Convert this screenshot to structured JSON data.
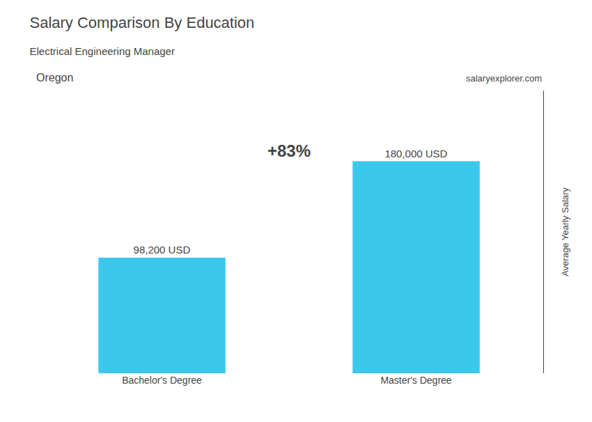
{
  "chart_data": {
    "type": "bar",
    "title": "Salary Comparison By Education",
    "subtitle": "Electrical Engineering Manager",
    "annotations": [
      "Oregon",
      "salaryexplorer.com",
      "+83%"
    ],
    "ylabel": "Average Yearly Salary",
    "categories": [
      "Bachelor's Degree",
      "Master's Degree"
    ],
    "values": [
      98200,
      180000
    ],
    "value_labels": [
      "98,200 USD",
      "180,000 USD"
    ],
    "data_labels": true,
    "color": "#3BC8EC",
    "ylim": [
      0,
      240000
    ],
    "tick_labels": "x",
    "grid": false
  }
}
